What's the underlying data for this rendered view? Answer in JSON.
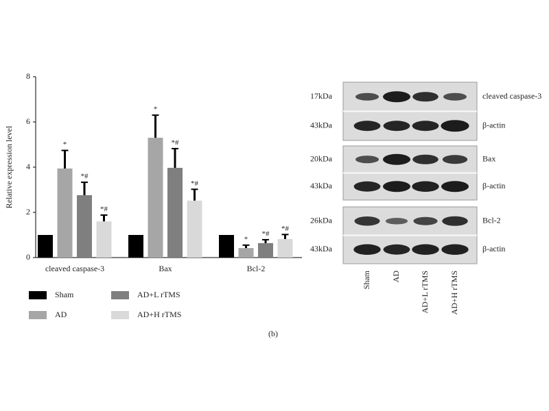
{
  "chart_data": {
    "type": "bar",
    "ylabel": "Relative expression level",
    "categories": [
      "cleaved caspase-3",
      "Bax",
      "Bcl-2"
    ],
    "ylim": [
      0,
      8
    ],
    "yticks": [
      0,
      2,
      4,
      6,
      8
    ],
    "grid": false,
    "legend": "bottom",
    "series": [
      {
        "name": "Sham",
        "color": "#000000",
        "values": [
          1,
          1,
          1
        ]
      },
      {
        "name": "AD",
        "color": "#a6a6a6",
        "values": [
          3.94,
          5.3,
          0.42
        ],
        "errors": [
          0.8,
          1.0,
          0.13
        ],
        "annotations": [
          "*",
          "*",
          "*"
        ]
      },
      {
        "name": "AD+L rTMS",
        "color": "#7f7f7f",
        "values": [
          2.76,
          3.97,
          0.64
        ],
        "errors": [
          0.57,
          0.85,
          0.15
        ],
        "annotations": [
          "*#",
          "*#",
          "*#"
        ]
      },
      {
        "name": "AD+H rTMS",
        "color": "#d9d9d9",
        "values": [
          1.6,
          2.52,
          0.82
        ],
        "errors": [
          0.28,
          0.5,
          0.2
        ],
        "annotations": [
          "*#",
          "*#",
          "*#"
        ]
      }
    ]
  },
  "blot": {
    "groups": [
      {
        "rows": [
          {
            "kda": "17kDa",
            "label": "cleaved caspase-3"
          },
          {
            "kda": "43kDa",
            "label": "β-actin"
          }
        ]
      },
      {
        "rows": [
          {
            "kda": "20kDa",
            "label": "Bax"
          },
          {
            "kda": "43kDa",
            "label": "β-actin"
          }
        ]
      },
      {
        "rows": [
          {
            "kda": "26kDa",
            "label": "Bcl-2"
          },
          {
            "kda": "43kDa",
            "label": "β-actin"
          }
        ]
      }
    ],
    "lanes": [
      "Sham",
      "AD",
      "AD+L rTMS",
      "AD+H rTMS"
    ]
  },
  "caption": "(b)"
}
